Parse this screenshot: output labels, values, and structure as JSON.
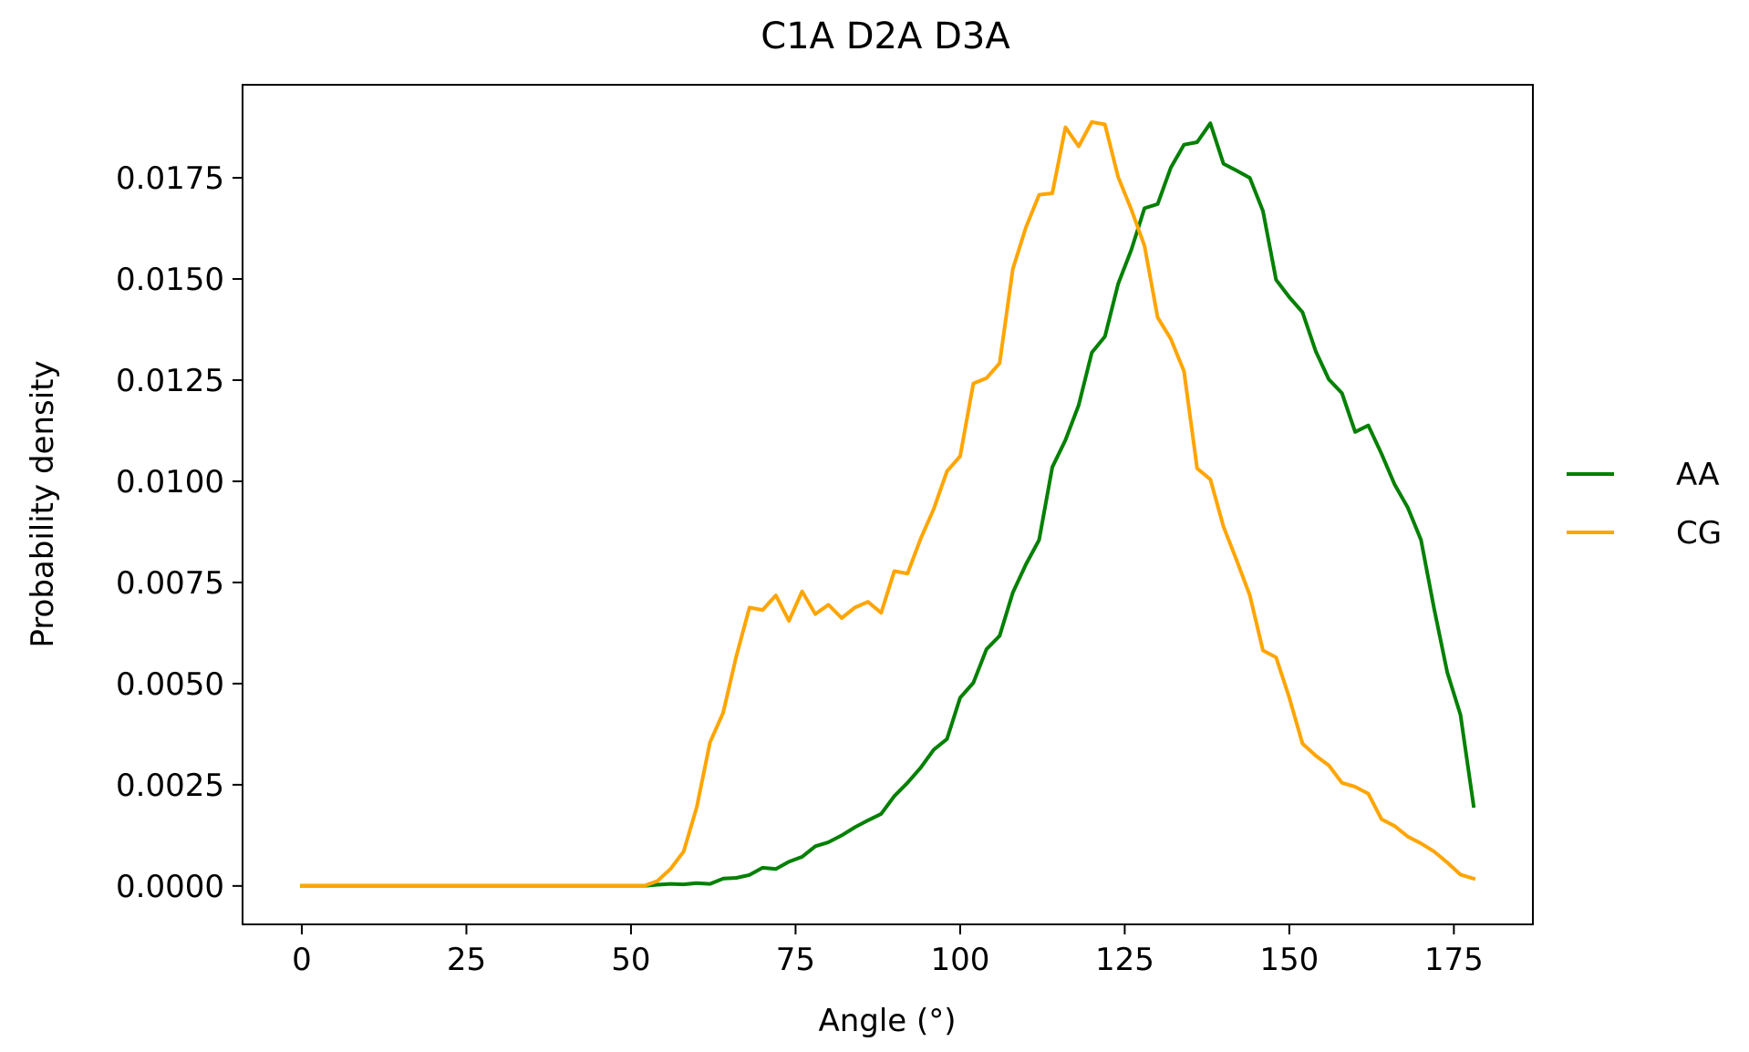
{
  "chart_data": {
    "type": "line",
    "title": "C1A D2A D3A",
    "xlabel": "Angle (°)",
    "ylabel": "Probability density",
    "xlim": [
      -9,
      187
    ],
    "ylim": [
      -0.00095,
      0.0198
    ],
    "xticks": [
      0,
      25,
      50,
      75,
      100,
      125,
      150,
      175
    ],
    "xtick_labels": [
      "0",
      "25",
      "50",
      "75",
      "100",
      "125",
      "150",
      "175"
    ],
    "yticks": [
      0.0,
      0.0025,
      0.005,
      0.0075,
      0.01,
      0.0125,
      0.015,
      0.0175
    ],
    "ytick_labels": [
      "0.0000",
      "0.0025",
      "0.0050",
      "0.0075",
      "0.0100",
      "0.0125",
      "0.0150",
      "0.0175"
    ],
    "grid": false,
    "legend_position": "outside-right",
    "x": [
      0,
      2,
      4,
      6,
      8,
      10,
      12,
      14,
      16,
      18,
      20,
      22,
      24,
      26,
      28,
      30,
      32,
      34,
      36,
      38,
      40,
      42,
      44,
      46,
      48,
      50,
      52,
      54,
      56,
      58,
      60,
      62,
      64,
      66,
      68,
      70,
      72,
      74,
      76,
      78,
      80,
      82,
      84,
      86,
      88,
      90,
      92,
      94,
      96,
      98,
      100,
      102,
      104,
      106,
      108,
      110,
      112,
      114,
      116,
      118,
      120,
      122,
      124,
      126,
      128,
      130,
      132,
      134,
      136,
      138,
      140,
      142,
      144,
      146,
      148,
      150,
      152,
      154,
      156,
      158,
      160,
      162,
      164,
      166,
      168,
      170,
      172,
      174,
      176,
      178
    ],
    "series": [
      {
        "name": "AA",
        "color": "#008000",
        "values": [
          0,
          0,
          0,
          0,
          0,
          0,
          0,
          0,
          0,
          0,
          0,
          0,
          0,
          0,
          0,
          0,
          0,
          0,
          0,
          0,
          0,
          0,
          0,
          0,
          0,
          0,
          0,
          3e-05,
          5e-05,
          4e-05,
          7e-05,
          5e-05,
          0.00018,
          0.0002,
          0.00027,
          0.00045,
          0.00042,
          0.0006,
          0.00072,
          0.00098,
          0.00108,
          0.00125,
          0.00145,
          0.00162,
          0.00178,
          0.00222,
          0.00255,
          0.00292,
          0.00337,
          0.00363,
          0.00465,
          0.00502,
          0.00585,
          0.00618,
          0.00725,
          0.00795,
          0.00855,
          0.01035,
          0.01102,
          0.01188,
          0.01318,
          0.01358,
          0.01488,
          0.01572,
          0.01675,
          0.01685,
          0.01775,
          0.01832,
          0.01838,
          0.01885,
          0.01785,
          0.01768,
          0.0175,
          0.01668,
          0.01498,
          0.01455,
          0.01418,
          0.01322,
          0.01252,
          0.01218,
          0.01122,
          0.01138,
          0.01068,
          0.00992,
          0.00935,
          0.00855,
          0.00685,
          0.00528,
          0.00423,
          0.00198
        ]
      },
      {
        "name": "CG",
        "color": "#ffa500",
        "values": [
          0,
          0,
          0,
          0,
          0,
          0,
          0,
          0,
          0,
          0,
          0,
          0,
          0,
          0,
          0,
          0,
          0,
          0,
          0,
          0,
          0,
          0,
          0,
          0,
          0,
          0,
          0,
          0.00012,
          0.00042,
          0.00085,
          0.00195,
          0.00355,
          0.00428,
          0.00568,
          0.00688,
          0.00682,
          0.00718,
          0.00655,
          0.00728,
          0.00672,
          0.00695,
          0.00662,
          0.00688,
          0.00702,
          0.00675,
          0.00778,
          0.00772,
          0.00858,
          0.00932,
          0.01025,
          0.01062,
          0.01242,
          0.01255,
          0.01292,
          0.01525,
          0.01628,
          0.01708,
          0.01712,
          0.01875,
          0.01828,
          0.01888,
          0.01882,
          0.01752,
          0.01672,
          0.01582,
          0.01405,
          0.01352,
          0.01272,
          0.01032,
          0.01005,
          0.00888,
          0.00805,
          0.00718,
          0.00582,
          0.00565,
          0.00465,
          0.00352,
          0.00322,
          0.00298,
          0.00255,
          0.00245,
          0.00228,
          0.00165,
          0.00148,
          0.00122,
          0.00105,
          0.00085,
          0.00058,
          0.00028,
          0.00018
        ]
      }
    ]
  }
}
